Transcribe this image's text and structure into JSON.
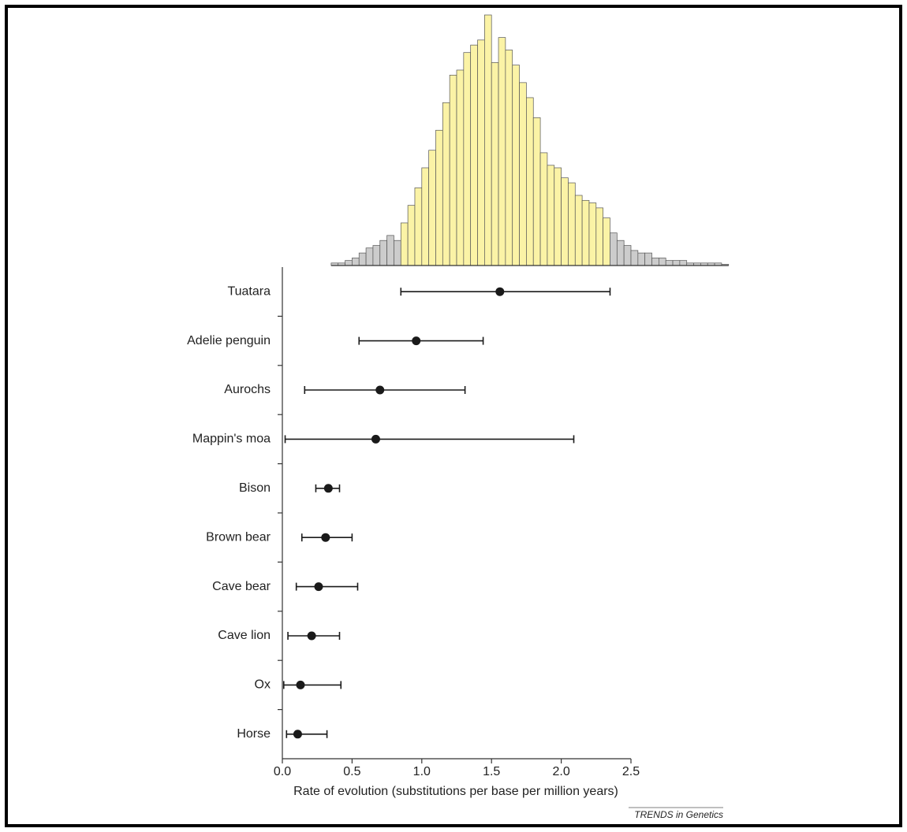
{
  "chart_data": [
    {
      "type": "histogram",
      "bins": [
        0.35,
        0.4,
        0.45,
        0.5,
        0.55,
        0.6,
        0.65,
        0.7,
        0.75,
        0.8,
        0.85,
        0.9,
        0.95,
        1.0,
        1.05,
        1.1,
        1.15,
        1.2,
        1.25,
        1.3,
        1.35,
        1.4,
        1.45,
        1.5,
        1.55,
        1.6,
        1.65,
        1.7,
        1.75,
        1.8,
        1.85,
        1.9,
        1.95,
        2.0,
        2.05,
        2.1,
        2.15,
        2.2,
        2.25,
        2.3,
        2.35,
        2.4,
        2.45,
        2.5,
        2.55,
        2.6,
        2.65,
        2.7,
        2.75,
        2.8,
        2.85,
        2.9,
        2.95,
        3.0,
        3.05,
        3.1,
        3.15,
        3.2
      ],
      "values": [
        1,
        1,
        2,
        3,
        5,
        7,
        8,
        10,
        12,
        10,
        17,
        24,
        31,
        39,
        46,
        54,
        65,
        76,
        78,
        85,
        88,
        90,
        100,
        81,
        91,
        86,
        80,
        73,
        67,
        59,
        45,
        40,
        39,
        35,
        33,
        28,
        26,
        25,
        23,
        19,
        13,
        10,
        8,
        6,
        5,
        5,
        3,
        3,
        2,
        2,
        2,
        1,
        1,
        1,
        1,
        1,
        0.5
      ],
      "colors": [
        "#cccccc",
        "#cccccc",
        "#cccccc",
        "#cccccc",
        "#cccccc",
        "#cccccc",
        "#cccccc",
        "#cccccc",
        "#cccccc",
        "#cccccc",
        "#fbf3a6",
        "#fbf3a6",
        "#fbf3a6",
        "#fbf3a6",
        "#fbf3a6",
        "#fbf3a6",
        "#fbf3a6",
        "#fbf3a6",
        "#fbf3a6",
        "#fbf3a6",
        "#fbf3a6",
        "#fbf3a6",
        "#fbf3a6",
        "#fbf3a6",
        "#fbf3a6",
        "#fbf3a6",
        "#fbf3a6",
        "#fbf3a6",
        "#fbf3a6",
        "#fbf3a6",
        "#fbf3a6",
        "#fbf3a6",
        "#fbf3a6",
        "#fbf3a6",
        "#fbf3a6",
        "#fbf3a6",
        "#fbf3a6",
        "#fbf3a6",
        "#fbf3a6",
        "#fbf3a6",
        "#cccccc",
        "#cccccc",
        "#cccccc",
        "#cccccc",
        "#cccccc",
        "#cccccc",
        "#cccccc",
        "#cccccc",
        "#cccccc",
        "#cccccc",
        "#cccccc",
        "#cccccc",
        "#cccccc",
        "#cccccc",
        "#cccccc",
        "#cccccc",
        "#cccccc"
      ],
      "ylim": [
        0,
        100
      ]
    },
    {
      "type": "dot-errorbar",
      "categories": [
        "Tuatara",
        "Adelie penguin",
        "Aurochs",
        "Mappin's moa",
        "Bison",
        "Brown bear",
        "Cave bear",
        "Cave lion",
        "Ox",
        "Horse"
      ],
      "values": [
        1.56,
        0.96,
        0.7,
        0.67,
        0.33,
        0.31,
        0.26,
        0.21,
        0.13,
        0.11
      ],
      "lower": [
        0.85,
        0.55,
        0.16,
        0.02,
        0.24,
        0.14,
        0.1,
        0.04,
        0.01,
        0.03
      ],
      "upper": [
        2.35,
        1.44,
        1.31,
        2.09,
        0.41,
        0.5,
        0.54,
        0.41,
        0.42,
        0.32
      ],
      "color": "#1a1a1a",
      "xlim": [
        0,
        2.5
      ],
      "xticks": [
        {
          "value": 0,
          "label": "0.0"
        },
        0.5,
        {
          "value": 1,
          "label": "1.0"
        },
        1.5,
        {
          "value": 2,
          "label": "2.0"
        },
        2.5
      ],
      "xlabel": "Rate of evolution (substitutions per base per million years)",
      "source": "TRENDS in Genetics"
    }
  ]
}
